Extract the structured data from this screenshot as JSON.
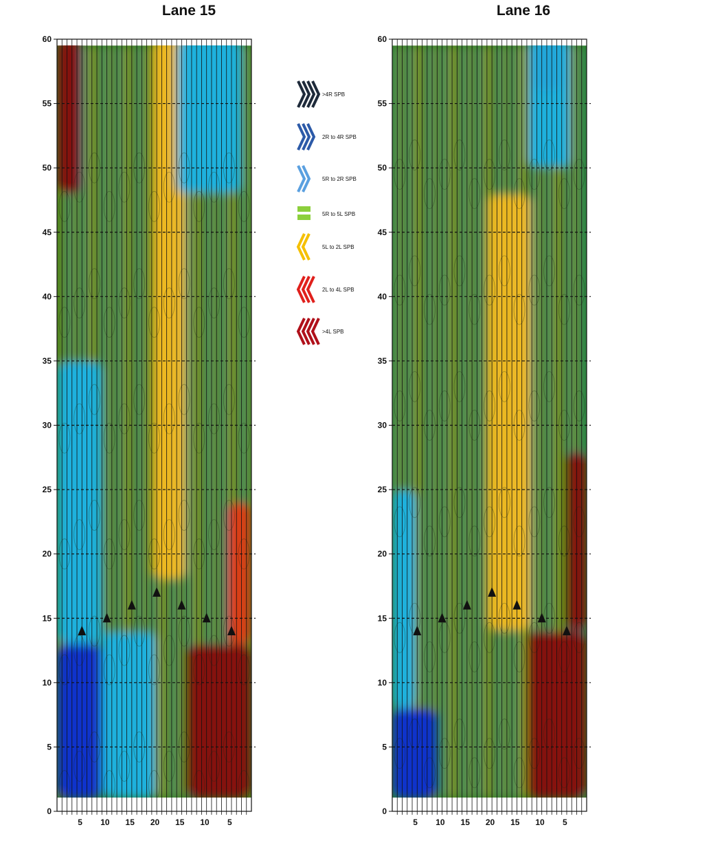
{
  "chart_data": [
    {
      "type": "heatmap",
      "title": "Lane 15",
      "xlabel": "",
      "ylabel": "",
      "ylim": [
        0,
        60
      ],
      "y_ticks": [
        "0",
        "5",
        "10",
        "15",
        "20",
        "25",
        "30",
        "35",
        "40",
        "45",
        "50",
        "55",
        "60"
      ],
      "x_tick_labels": [
        "5",
        "10",
        "15",
        "20",
        "15",
        "10",
        "5"
      ],
      "board_count": 39,
      "arrows": [
        {
          "board": 5,
          "distance": 14
        },
        {
          "board": 10,
          "distance": 15
        },
        {
          "board": 15,
          "distance": 16
        },
        {
          "board": 20,
          "distance": 17
        },
        {
          "board": 25,
          "distance": 16
        },
        {
          "board": 30,
          "distance": 15
        },
        {
          "board": 35,
          "distance": 14
        }
      ],
      "regions": [
        {
          "board_range": [
            1,
            5
          ],
          "distance_range": [
            48,
            60
          ],
          "category": "dark-red"
        },
        {
          "board_range": [
            1,
            9
          ],
          "distance_range": [
            1,
            13
          ],
          "category": "dark-blue"
        },
        {
          "board_range": [
            1,
            9
          ],
          "distance_range": [
            13,
            35
          ],
          "category": "light-blue"
        },
        {
          "board_range": [
            10,
            20
          ],
          "distance_range": [
            1,
            14
          ],
          "category": "light-blue"
        },
        {
          "board_range": [
            20,
            26
          ],
          "distance_range": [
            18,
            60
          ],
          "category": "yellow"
        },
        {
          "board_range": [
            25,
            37
          ],
          "distance_range": [
            48,
            60
          ],
          "category": "light-blue"
        },
        {
          "board_range": [
            27,
            39
          ],
          "distance_range": [
            1,
            13
          ],
          "category": "dark-red"
        },
        {
          "board_range": [
            35,
            39
          ],
          "distance_range": [
            13,
            24
          ],
          "category": "red"
        }
      ]
    },
    {
      "type": "heatmap",
      "title": "Lane 16",
      "xlabel": "",
      "ylabel": "",
      "ylim": [
        0,
        60
      ],
      "y_ticks": [
        "0",
        "5",
        "10",
        "15",
        "20",
        "25",
        "30",
        "35",
        "40",
        "45",
        "50",
        "55",
        "60"
      ],
      "x_tick_labels": [
        "5",
        "10",
        "15",
        "20",
        "15",
        "10",
        "5"
      ],
      "board_count": 39,
      "arrows": [
        {
          "board": 5,
          "distance": 14
        },
        {
          "board": 10,
          "distance": 15
        },
        {
          "board": 15,
          "distance": 16
        },
        {
          "board": 20,
          "distance": 17
        },
        {
          "board": 25,
          "distance": 16
        },
        {
          "board": 30,
          "distance": 15
        },
        {
          "board": 35,
          "distance": 14
        }
      ],
      "regions": [
        {
          "board_range": [
            1,
            9
          ],
          "distance_range": [
            1,
            8
          ],
          "category": "dark-blue"
        },
        {
          "board_range": [
            1,
            5
          ],
          "distance_range": [
            8,
            25
          ],
          "category": "light-blue"
        },
        {
          "board_range": [
            28,
            39
          ],
          "distance_range": [
            1,
            14
          ],
          "category": "dark-red"
        },
        {
          "board_range": [
            36,
            39
          ],
          "distance_range": [
            14,
            28
          ],
          "category": "dark-red"
        },
        {
          "board_range": [
            29,
            34
          ],
          "distance_range": [
            56,
            60
          ],
          "category": "dark-red"
        },
        {
          "board_range": [
            28,
            36
          ],
          "distance_range": [
            50,
            60
          ],
          "category": "light-blue"
        },
        {
          "board_range": [
            20,
            28
          ],
          "distance_range": [
            14,
            48
          ],
          "category": "yellow"
        }
      ]
    }
  ],
  "legend": {
    "items": [
      {
        "label": ">4R SPB",
        "color": "#1e2a3a",
        "glyph": "chevron-right-x4"
      },
      {
        "label": "2R to 4R SPB",
        "color": "#2c5aa8",
        "glyph": "chevron-right-x3"
      },
      {
        "label": "5R to 2R SPB",
        "color": "#5aa0e0",
        "glyph": "chevron-right-x2"
      },
      {
        "label": "5R to 5L SPB",
        "color": "#8ccf3c",
        "glyph": "equals-bars"
      },
      {
        "label": "5L to 2L SPB",
        "color": "#f5c000",
        "glyph": "chevron-left-x2"
      },
      {
        "label": "2L to 4L SPB",
        "color": "#e0201c",
        "glyph": "chevron-left-x3"
      },
      {
        "label": ">4L SPB",
        "color": "#b0101a",
        "glyph": "chevron-left-x4"
      }
    ]
  },
  "colors": {
    "dark-blue": "#0a2ad8",
    "light-blue": "#1ab4ec",
    "green": "#2a7a18",
    "yellow": "#f8bc22",
    "red": "#e63a14",
    "dark-red": "#8a0a0a"
  }
}
